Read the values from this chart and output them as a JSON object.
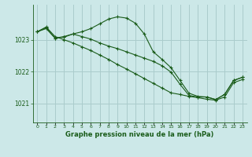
{
  "title": "Graphe pression niveau de la mer (hPa)",
  "xlabel_ticks": [
    "0",
    "1",
    "2",
    "3",
    "4",
    "5",
    "6",
    "7",
    "8",
    "9",
    "10",
    "11",
    "12",
    "13",
    "14",
    "15",
    "16",
    "17",
    "18",
    "19",
    "20",
    "21",
    "22",
    "23"
  ],
  "yticks": [
    1021,
    1022,
    1023
  ],
  "ylim": [
    1020.4,
    1024.1
  ],
  "xlim": [
    -0.5,
    23.5
  ],
  "bg_color": "#cce8e8",
  "grid_color": "#aacccc",
  "line_color": "#1a5c1a",
  "series1": [
    1023.25,
    1023.4,
    1023.1,
    1023.0,
    1022.9,
    1022.78,
    1022.66,
    1022.52,
    1022.38,
    1022.22,
    1022.08,
    1021.93,
    1021.78,
    1021.63,
    1021.48,
    1021.33,
    1021.28,
    1021.22,
    1021.18,
    1021.13,
    1021.1,
    1021.2,
    1021.65,
    1021.75
  ],
  "series2": [
    1023.25,
    1023.35,
    1023.05,
    1023.1,
    1023.18,
    1023.25,
    1023.35,
    1023.5,
    1023.65,
    1023.72,
    1023.68,
    1023.52,
    1023.18,
    1022.62,
    1022.38,
    1022.12,
    1021.72,
    1021.32,
    1021.22,
    1021.2,
    1021.12,
    1021.28,
    1021.72,
    1021.82
  ],
  "series3": [
    1023.25,
    1023.38,
    1023.05,
    1023.08,
    1023.18,
    1023.1,
    1023.02,
    1022.9,
    1022.8,
    1022.72,
    1022.62,
    1022.52,
    1022.42,
    1022.32,
    1022.18,
    1021.98,
    1021.6,
    1021.25,
    1021.2,
    1021.2,
    1021.12,
    1021.28,
    1021.72,
    1021.82
  ]
}
